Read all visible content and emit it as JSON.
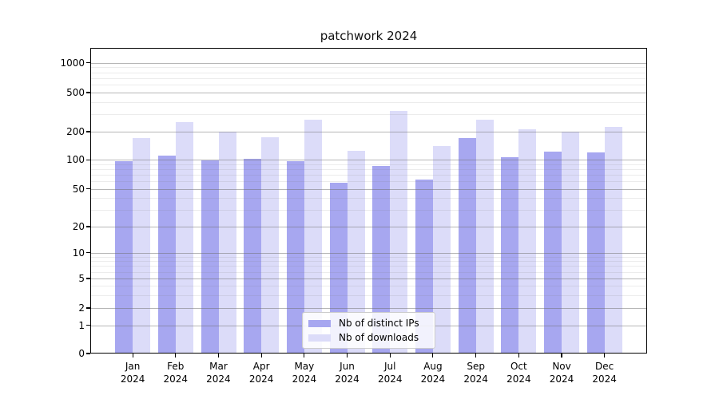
{
  "figure": {
    "background": "#ffffff"
  },
  "chart_data": {
    "type": "bar",
    "title": "patchwork 2024",
    "categories": [
      "Jan",
      "Feb",
      "Mar",
      "Apr",
      "May",
      "Jun",
      "Jul",
      "Aug",
      "Sep",
      "Oct",
      "Nov",
      "Dec"
    ],
    "year_label": "2024",
    "series": [
      {
        "name": "Nb of distinct IPs",
        "color": "#a7a7f0",
        "values": [
          97,
          110,
          98,
          103,
          96,
          58,
          86,
          63,
          170,
          106,
          122,
          120
        ]
      },
      {
        "name": "Nb of downloads",
        "color": "#dcdcf9",
        "values": [
          172,
          250,
          200,
          175,
          265,
          125,
          327,
          140,
          265,
          210,
          202,
          222
        ]
      }
    ],
    "xlabel": "",
    "ylabel": "",
    "yscale": "symlog",
    "y_ticks": [
      0,
      1,
      2,
      5,
      10,
      20,
      50,
      100,
      200,
      500,
      1000
    ],
    "ylim": [
      0,
      1400
    ],
    "grid": true,
    "grid_minor": true,
    "legend_position": "lower center"
  }
}
